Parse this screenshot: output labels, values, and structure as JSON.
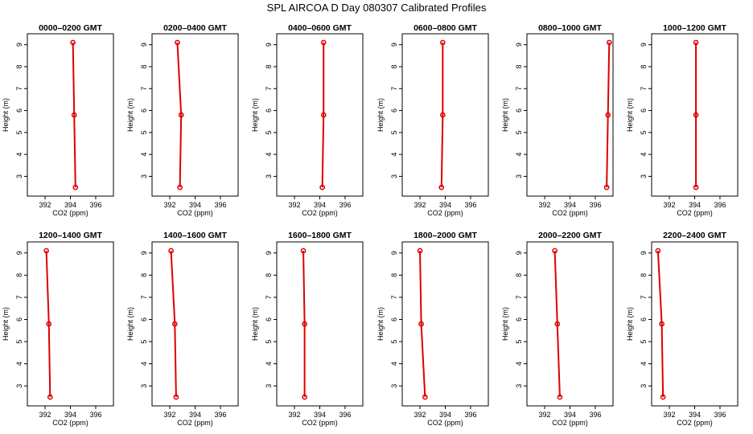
{
  "chart_data": {
    "type": "line",
    "title": "SPL AIRCOA D  Day 080307  Calibrated Profiles",
    "xlabel": "CO2 (ppm)",
    "ylabel": "Height (m)",
    "xlim": [
      390.6,
      397.4
    ],
    "ylim": [
      2.1,
      9.5
    ],
    "xticks": [
      392,
      394,
      396
    ],
    "yticks": [
      3,
      4,
      5,
      6,
      7,
      8,
      9
    ],
    "line_color": "#dd0000",
    "panels": [
      {
        "title": "0000–0200 GMT",
        "x": [
          394.2,
          394.3,
          394.4
        ],
        "y": [
          9.1,
          5.8,
          2.5
        ]
      },
      {
        "title": "0200–0400 GMT",
        "x": [
          392.6,
          392.9,
          392.8
        ],
        "y": [
          9.1,
          5.8,
          2.5
        ]
      },
      {
        "title": "0400–0600 GMT",
        "x": [
          394.3,
          394.3,
          394.2
        ],
        "y": [
          9.1,
          5.8,
          2.5
        ]
      },
      {
        "title": "0600–0800 GMT",
        "x": [
          393.8,
          393.8,
          393.7
        ],
        "y": [
          9.1,
          5.8,
          2.5
        ]
      },
      {
        "title": "0800–1000 GMT",
        "x": [
          397.1,
          397.0,
          396.9
        ],
        "y": [
          9.1,
          5.8,
          2.5
        ]
      },
      {
        "title": "1000–1200 GMT",
        "x": [
          394.1,
          394.1,
          394.1
        ],
        "y": [
          9.1,
          5.8,
          2.5
        ]
      },
      {
        "title": "1200–1400 GMT",
        "x": [
          392.1,
          392.3,
          392.4
        ],
        "y": [
          9.1,
          5.8,
          2.5
        ]
      },
      {
        "title": "1400–1600 GMT",
        "x": [
          392.1,
          392.4,
          392.5
        ],
        "y": [
          9.1,
          5.8,
          2.5
        ]
      },
      {
        "title": "1600–1800 GMT",
        "x": [
          392.7,
          392.8,
          392.8
        ],
        "y": [
          9.1,
          5.8,
          2.5
        ]
      },
      {
        "title": "1800–2000 GMT",
        "x": [
          392.0,
          392.1,
          392.4
        ],
        "y": [
          9.1,
          5.8,
          2.5
        ]
      },
      {
        "title": "2000–2200 GMT",
        "x": [
          392.8,
          393.0,
          393.2
        ],
        "y": [
          9.1,
          5.8,
          2.5
        ]
      },
      {
        "title": "2200–2400 GMT",
        "x": [
          391.1,
          391.4,
          391.5
        ],
        "y": [
          9.1,
          5.8,
          2.5
        ]
      }
    ]
  }
}
